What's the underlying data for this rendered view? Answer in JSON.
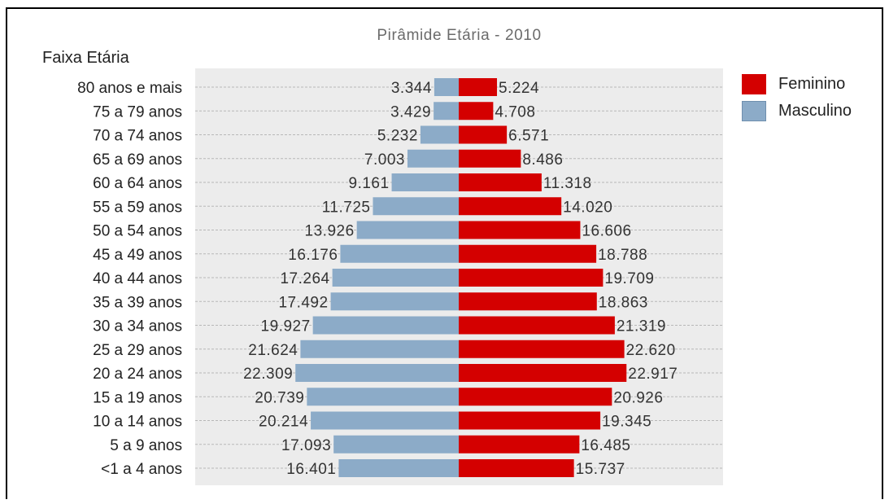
{
  "chart_data": {
    "type": "bar",
    "orientation": "horizontal",
    "stacked_diverging": true,
    "title": "Pirâmide Etária - 2010",
    "ylabel": "Faixa Etária",
    "categories": [
      "80 anos e mais",
      "75 a 79 anos",
      "70 a 74 anos",
      "65 a 69 anos",
      "60 a 64 anos",
      "55 a 59 anos",
      "50 a 54 anos",
      "45 a 49 anos",
      "40 a 44 anos",
      "35 a 39 anos",
      "30 a 34 anos",
      "25 a 29 anos",
      "20 a 24 anos",
      "15 a 19 anos",
      "10 a 14 anos",
      "5 a 9 anos",
      "<1 a 4 anos"
    ],
    "series": [
      {
        "name": "Masculino",
        "color": "#8cabc8",
        "side": "left",
        "values": [
          3344,
          3429,
          5232,
          7003,
          9161,
          11725,
          13926,
          16176,
          17264,
          17492,
          19927,
          21624,
          22309,
          20739,
          20214,
          17093,
          16401
        ],
        "labels": [
          "3.344",
          "3.429",
          "5.232",
          "7.003",
          "9.161",
          "11.725",
          "13.926",
          "16.176",
          "17.264",
          "17.492",
          "19.927",
          "21.624",
          "22.309",
          "20.739",
          "20.214",
          "17.093",
          "16.401"
        ]
      },
      {
        "name": "Feminino",
        "color": "#d40000",
        "side": "right",
        "values": [
          5224,
          4708,
          6571,
          8486,
          11318,
          14020,
          16606,
          18788,
          19709,
          18863,
          21319,
          22620,
          22917,
          20926,
          19345,
          16485,
          15737
        ],
        "labels": [
          "5.224",
          "4.708",
          "6.571",
          "8.486",
          "11.318",
          "14.020",
          "16.606",
          "18.788",
          "19.709",
          "18.863",
          "21.319",
          "22.620",
          "22.917",
          "20.926",
          "19.345",
          "16.485",
          "15.737"
        ]
      }
    ],
    "grid": true,
    "legend_position": "top-right",
    "legend": [
      {
        "name": "Feminino",
        "color": "#d40000"
      },
      {
        "name": "Masculino",
        "color": "#8cabc8"
      }
    ]
  }
}
